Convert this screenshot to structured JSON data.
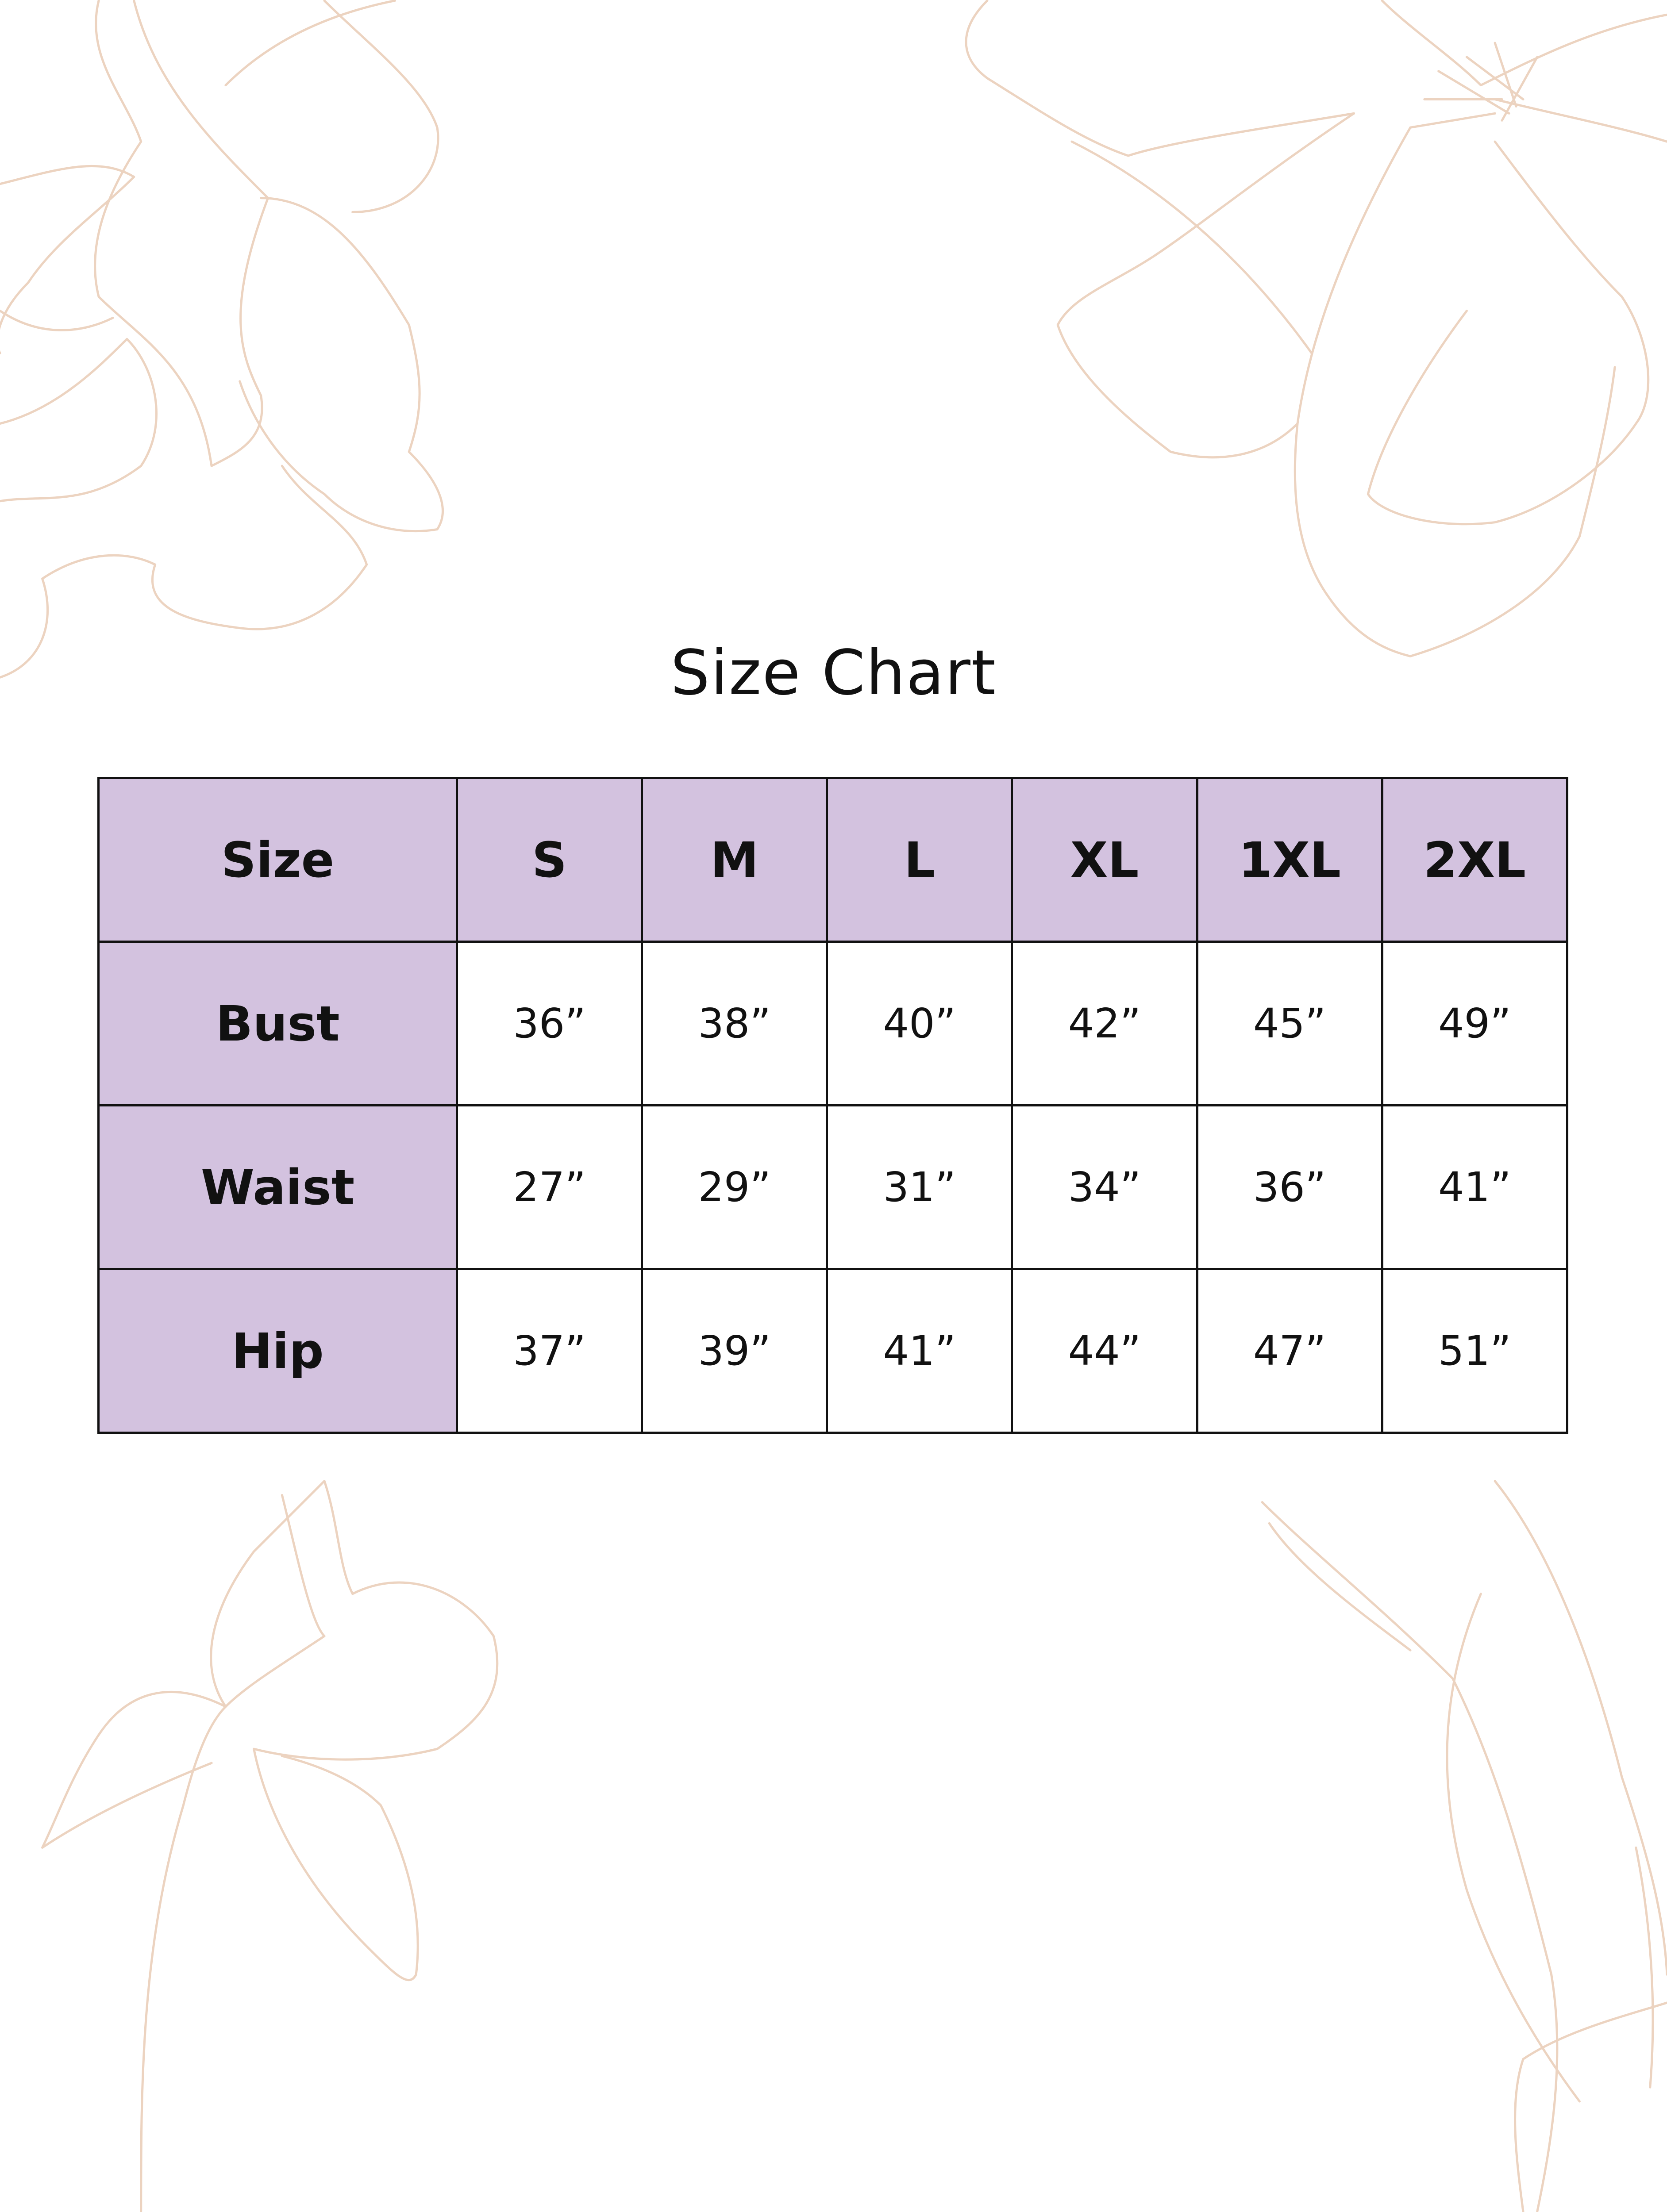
{
  "title": "Size Chart",
  "colors": {
    "header_fill": "#d3c2df",
    "border": "#111111",
    "floral_outline": "#ecd3c0"
  },
  "decorations": [
    "floral-line-art-top-left",
    "floral-line-art-top-right",
    "floral-line-art-bottom-left",
    "floral-line-art-bottom-right"
  ],
  "table": {
    "header": [
      "Size",
      "S",
      "M",
      "L",
      "XL",
      "1XL",
      "2XL"
    ],
    "rows": [
      {
        "label": "Bust",
        "values": [
          "36”",
          "38”",
          "40”",
          "42”",
          "45”",
          "49”"
        ]
      },
      {
        "label": "Waist",
        "values": [
          "27”",
          "29”",
          "31”",
          "34”",
          "36”",
          "41”"
        ]
      },
      {
        "label": "Hip",
        "values": [
          "37”",
          "39”",
          "41”",
          "44”",
          "47”",
          "51”"
        ]
      }
    ]
  }
}
